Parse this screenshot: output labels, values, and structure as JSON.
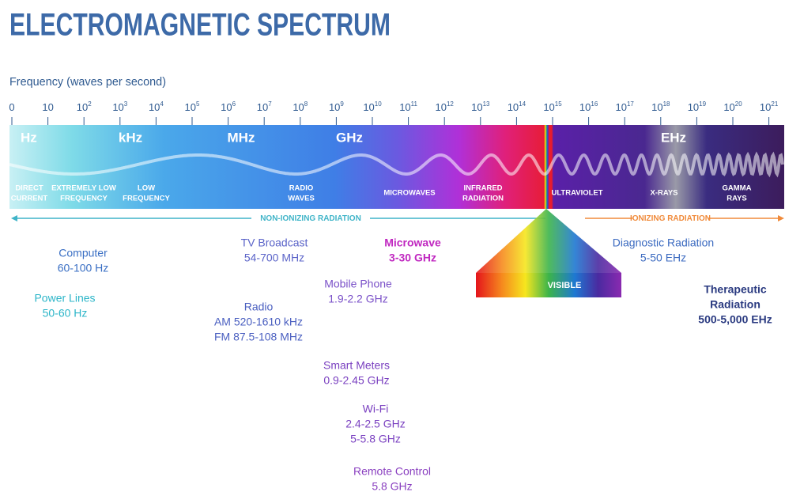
{
  "header": {
    "title": "ELECTROMAGNETIC SPECTRUM",
    "axis_label": "Frequency (waves per second)"
  },
  "ticks": [
    {
      "base": "0"
    },
    {
      "base": "10"
    },
    {
      "base": "10",
      "exp": "2"
    },
    {
      "base": "10",
      "exp": "3"
    },
    {
      "base": "10",
      "exp": "4"
    },
    {
      "base": "10",
      "exp": "5"
    },
    {
      "base": "10",
      "exp": "6"
    },
    {
      "base": "10",
      "exp": "7"
    },
    {
      "base": "10",
      "exp": "8"
    },
    {
      "base": "10",
      "exp": "9"
    },
    {
      "base": "10",
      "exp": "10"
    },
    {
      "base": "10",
      "exp": "11"
    },
    {
      "base": "10",
      "exp": "12"
    },
    {
      "base": "10",
      "exp": "13"
    },
    {
      "base": "10",
      "exp": "14"
    },
    {
      "base": "10",
      "exp": "15"
    },
    {
      "base": "10",
      "exp": "16"
    },
    {
      "base": "10",
      "exp": "17"
    },
    {
      "base": "10",
      "exp": "18"
    },
    {
      "base": "10",
      "exp": "19"
    },
    {
      "base": "10",
      "exp": "20"
    },
    {
      "base": "10",
      "exp": "21"
    }
  ],
  "bands": [
    "Hz",
    "kHz",
    "MHz",
    "GHz",
    "EHz"
  ],
  "regions": [
    {
      "lines": [
        "DIRECT",
        "CURRENT"
      ]
    },
    {
      "lines": [
        "EXTREMELY LOW",
        "FREQUENCY"
      ]
    },
    {
      "lines": [
        "LOW",
        "FREQUENCY"
      ]
    },
    {
      "lines": [
        "RADIO",
        "WAVES"
      ]
    },
    {
      "lines": [
        "MICROWAVES"
      ]
    },
    {
      "lines": [
        "INFRARED",
        "RADIATION"
      ]
    },
    {
      "lines": [
        "ULTRAVIOLET"
      ]
    },
    {
      "lines": [
        "X-RAYS"
      ]
    },
    {
      "lines": [
        "GAMMA",
        "RAYS"
      ]
    }
  ],
  "arrows": {
    "non_ionizing": "NON-IONIZING RADIATION",
    "ionizing": "IONIZING RADIATION"
  },
  "visible": "VISIBLE",
  "callouts": [
    {
      "lines": [
        "Computer",
        "60-100 Hz"
      ]
    },
    {
      "lines": [
        "Power Lines",
        "50-60 Hz"
      ]
    },
    {
      "lines": [
        "TV Broadcast",
        "54-700 MHz"
      ]
    },
    {
      "lines": [
        "Microwave",
        "3-30 GHz"
      ]
    },
    {
      "lines": [
        "Mobile Phone",
        "1.9-2.2 GHz"
      ]
    },
    {
      "lines": [
        "Radio",
        "AM 520-1610 kHz",
        "FM 87.5-108 MHz"
      ]
    },
    {
      "lines": [
        "Smart Meters",
        "0.9-2.45 GHz"
      ]
    },
    {
      "lines": [
        "Wi-Fi",
        "2.4-2.5 GHz",
        "5-5.8 GHz"
      ]
    },
    {
      "lines": [
        "Remote Control",
        "5.8 GHz"
      ]
    },
    {
      "lines": [
        "Diagnostic Radiation",
        "5-50 EHz"
      ]
    },
    {
      "lines": [
        "Therapeutic",
        "Radiation",
        "500-5,000 EHz"
      ]
    }
  ]
}
